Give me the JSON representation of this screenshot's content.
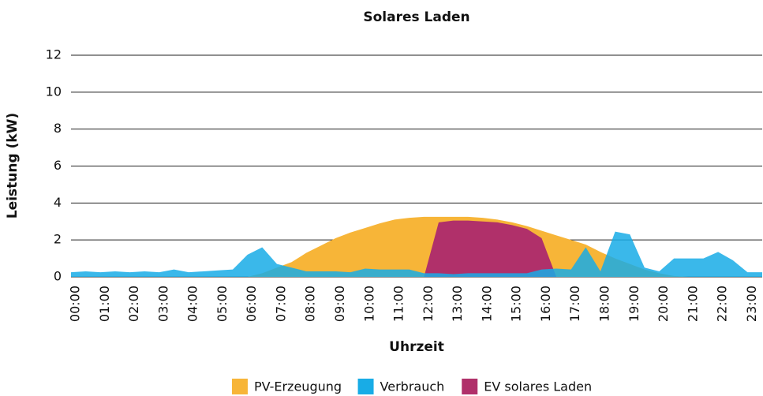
{
  "chart_data": {
    "type": "area",
    "title": "Solares Laden",
    "xlabel": "Uhrzeit",
    "ylabel": "Leistung (kW)",
    "categories": [
      "00:00",
      null,
      "01:00",
      null,
      "02:00",
      null,
      "03:00",
      null,
      "04:00",
      null,
      "05:00",
      null,
      "06:00",
      null,
      "07:00",
      null,
      "08:00",
      null,
      "09:00",
      null,
      "10:00",
      null,
      "11:00",
      null,
      "12:00",
      null,
      "13:00",
      null,
      "14:00",
      null,
      "15:00",
      null,
      "16:00",
      null,
      "17:00",
      null,
      "18:00",
      null,
      "19:00",
      null,
      "20:00",
      null,
      "21:00",
      null,
      "22:00",
      null,
      "23:00",
      null
    ],
    "series": [
      {
        "name": "PV-Erzeugung",
        "color": "#f7b538",
        "values": [
          0,
          0,
          0,
          0,
          0,
          0,
          0,
          0,
          0,
          0,
          0,
          0,
          0,
          0.2,
          0.5,
          0.8,
          1.3,
          1.7,
          2.1,
          2.4,
          2.65,
          2.9,
          3.1,
          3.2,
          3.25,
          3.25,
          3.25,
          3.25,
          3.2,
          3.1,
          2.95,
          2.75,
          2.5,
          2.25,
          2.0,
          1.75,
          1.35,
          1.0,
          0.7,
          0.4,
          0.2,
          0.05,
          0,
          0,
          0,
          0,
          0,
          0
        ]
      },
      {
        "name": "Verbrauch",
        "color": "#18ace6",
        "values": [
          0.25,
          0.3,
          0.25,
          0.3,
          0.25,
          0.3,
          0.25,
          0.4,
          0.25,
          0.3,
          0.35,
          0.4,
          1.2,
          1.6,
          0.7,
          0.5,
          0.3,
          0.3,
          0.3,
          0.25,
          0.45,
          0.4,
          0.4,
          0.4,
          0.2,
          0.2,
          0.15,
          0.2,
          0.2,
          0.2,
          0.2,
          0.2,
          0.4,
          0.45,
          0.4,
          1.6,
          0.3,
          2.45,
          2.3,
          0.5,
          0.3,
          1.0,
          1.0,
          1.0,
          1.35,
          0.9,
          0.25,
          0.25
        ]
      },
      {
        "name": "EV solares Laden",
        "color": "#b0306a",
        "values": [
          0,
          0,
          0,
          0,
          0,
          0,
          0,
          0,
          0,
          0,
          0,
          0,
          0,
          0,
          0,
          0,
          0,
          0,
          0,
          0,
          0,
          0,
          0,
          0,
          0,
          2.95,
          3.05,
          3.05,
          3.0,
          2.95,
          2.8,
          2.6,
          2.1,
          0,
          0,
          0,
          0,
          0,
          0,
          0,
          0,
          0,
          0,
          0,
          0,
          0,
          0,
          0
        ]
      }
    ],
    "draw_order": [
      0,
      2,
      1
    ],
    "ylim": [
      0,
      12
    ],
    "yticks": [
      0,
      2,
      4,
      6,
      8,
      10,
      12
    ],
    "grid": true,
    "legend": "bottom"
  }
}
